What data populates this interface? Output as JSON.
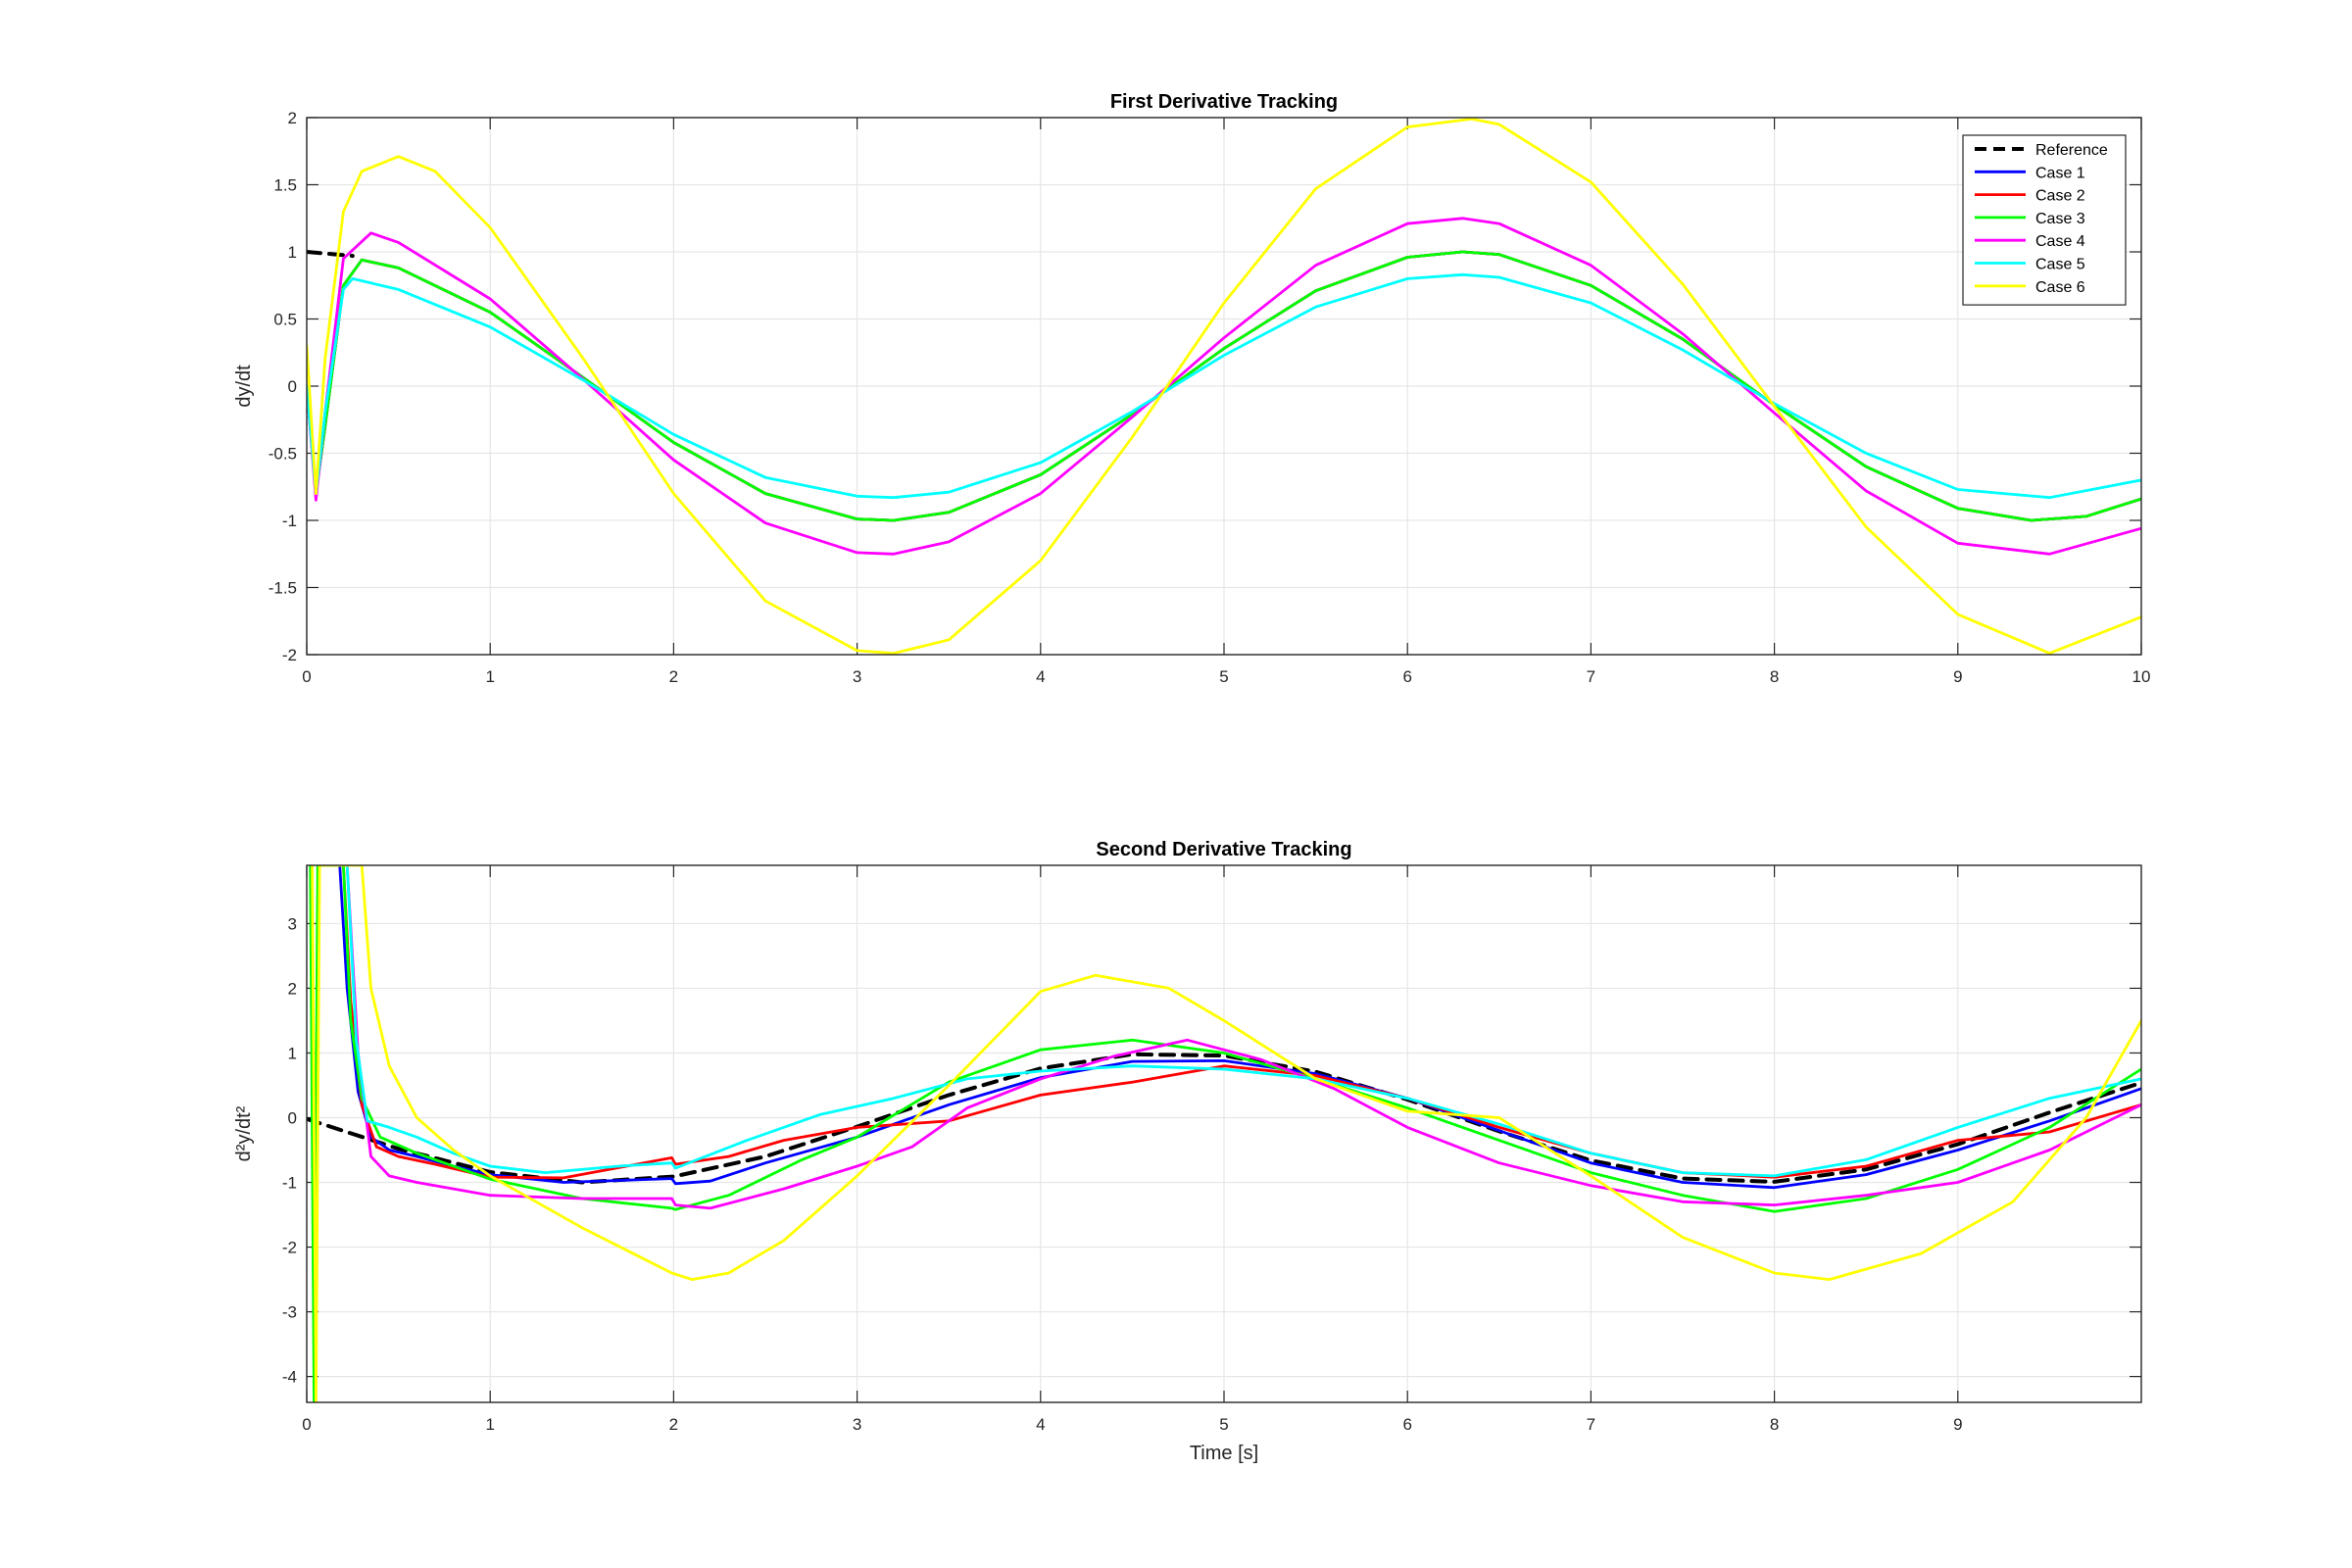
{
  "chart_data": [
    {
      "type": "line",
      "title": "First Derivative Tracking",
      "xlabel": "",
      "ylabel": "dy/dt",
      "xlim": [
        0,
        10
      ],
      "ylim": [
        -2,
        2
      ],
      "xticks": [
        "0",
        "1",
        "2",
        "3",
        "4",
        "5",
        "6",
        "7",
        "8",
        "9",
        "10"
      ],
      "yticks": [
        "-2",
        "-1.5",
        "-1",
        "-0.5",
        "0",
        "0.5",
        "1",
        "1.5",
        "2"
      ],
      "grid": true,
      "legend": {
        "position": "top-right",
        "entries": [
          "Reference",
          "Case 1",
          "Case 2",
          "Case 3",
          "Case 4",
          "Case 5",
          "Case 6"
        ]
      },
      "series": [
        {
          "name": "Reference",
          "color": "#000000",
          "dashed": true,
          "x": [
            0,
            0.25
          ],
          "y": [
            1.0,
            0.97
          ]
        },
        {
          "name": "Case 1",
          "color": "#0000ff",
          "x": [
            0,
            0.05,
            0.1,
            0.2,
            0.3,
            0.5,
            1.0,
            1.5,
            2.0,
            2.5,
            3.0,
            3.2,
            3.5,
            4.0,
            4.5,
            5.0,
            5.5,
            6.0,
            6.3,
            6.5,
            7.0,
            7.5,
            8.0,
            8.5,
            9.0,
            9.4,
            9.7,
            10.0
          ],
          "y": [
            0.0,
            -0.8,
            -0.3,
            0.75,
            0.94,
            0.88,
            0.55,
            0.07,
            -0.42,
            -0.8,
            -0.99,
            -1.0,
            -0.94,
            -0.66,
            -0.21,
            0.28,
            0.71,
            0.96,
            1.0,
            0.98,
            0.75,
            0.35,
            -0.14,
            -0.6,
            -0.91,
            -1.0,
            -0.97,
            -0.84
          ]
        },
        {
          "name": "Case 2",
          "color": "#ff0000",
          "x": [
            0,
            0.05,
            0.1,
            0.2,
            0.3,
            0.5,
            1.0,
            1.5,
            2.0,
            2.5,
            3.0,
            3.2,
            3.5,
            4.0,
            4.5,
            5.0,
            5.5,
            6.0,
            6.3,
            6.5,
            7.0,
            7.5,
            8.0,
            8.5,
            9.0,
            9.4,
            9.7,
            10.0
          ],
          "y": [
            0.0,
            -0.8,
            -0.3,
            0.75,
            0.94,
            0.88,
            0.55,
            0.07,
            -0.42,
            -0.8,
            -0.99,
            -1.0,
            -0.94,
            -0.66,
            -0.21,
            0.28,
            0.71,
            0.96,
            1.0,
            0.98,
            0.75,
            0.35,
            -0.14,
            -0.6,
            -0.91,
            -1.0,
            -0.97,
            -0.84
          ]
        },
        {
          "name": "Case 3",
          "color": "#00ff00",
          "x": [
            0,
            0.05,
            0.1,
            0.2,
            0.3,
            0.5,
            1.0,
            1.5,
            2.0,
            2.5,
            3.0,
            3.2,
            3.5,
            4.0,
            4.5,
            5.0,
            5.5,
            6.0,
            6.3,
            6.5,
            7.0,
            7.5,
            8.0,
            8.5,
            9.0,
            9.4,
            9.7,
            10.0
          ],
          "y": [
            0.0,
            -0.8,
            -0.3,
            0.75,
            0.94,
            0.88,
            0.55,
            0.07,
            -0.42,
            -0.8,
            -0.99,
            -1.0,
            -0.94,
            -0.66,
            -0.21,
            0.28,
            0.71,
            0.96,
            1.0,
            0.98,
            0.75,
            0.35,
            -0.14,
            -0.6,
            -0.91,
            -1.0,
            -0.97,
            -0.84
          ]
        },
        {
          "name": "Case 4",
          "color": "#ff00ff",
          "x": [
            0,
            0.05,
            0.1,
            0.2,
            0.35,
            0.5,
            1.0,
            1.5,
            2.0,
            2.5,
            3.0,
            3.2,
            3.5,
            4.0,
            4.5,
            5.0,
            5.5,
            6.0,
            6.3,
            6.5,
            7.0,
            7.5,
            8.0,
            8.5,
            9.0,
            9.5,
            10.0
          ],
          "y": [
            0.0,
            -0.85,
            -0.2,
            0.95,
            1.14,
            1.07,
            0.65,
            0.06,
            -0.55,
            -1.02,
            -1.24,
            -1.25,
            -1.16,
            -0.8,
            -0.23,
            0.36,
            0.9,
            1.21,
            1.25,
            1.21,
            0.9,
            0.39,
            -0.2,
            -0.78,
            -1.17,
            -1.25,
            -1.06
          ]
        },
        {
          "name": "Case 5",
          "color": "#00ffff",
          "x": [
            0,
            0.05,
            0.1,
            0.2,
            0.25,
            0.5,
            1.0,
            1.5,
            2.0,
            2.5,
            3.0,
            3.2,
            3.5,
            4.0,
            4.5,
            5.0,
            5.5,
            6.0,
            6.3,
            6.5,
            7.0,
            7.5,
            8.0,
            8.5,
            9.0,
            9.5,
            10.0
          ],
          "y": [
            0.0,
            -0.8,
            -0.2,
            0.72,
            0.8,
            0.72,
            0.44,
            0.05,
            -0.36,
            -0.68,
            -0.82,
            -0.83,
            -0.79,
            -0.57,
            -0.19,
            0.23,
            0.59,
            0.8,
            0.83,
            0.81,
            0.62,
            0.27,
            -0.13,
            -0.5,
            -0.77,
            -0.83,
            -0.7
          ]
        },
        {
          "name": "Case 6",
          "color": "#ffff00",
          "x": [
            0,
            0.05,
            0.1,
            0.2,
            0.3,
            0.5,
            0.7,
            1.0,
            1.5,
            2.0,
            2.5,
            3.0,
            3.2,
            3.5,
            4.0,
            4.5,
            5.0,
            5.5,
            6.0,
            6.35,
            6.5,
            7.0,
            7.5,
            8.0,
            8.5,
            9.0,
            9.5,
            10.0
          ],
          "y": [
            0.3,
            -0.8,
            0.2,
            1.3,
            1.6,
            1.71,
            1.6,
            1.18,
            0.22,
            -0.8,
            -1.6,
            -1.97,
            -1.99,
            -1.89,
            -1.3,
            -0.38,
            0.62,
            1.47,
            1.93,
            1.99,
            1.95,
            1.52,
            0.76,
            -0.15,
            -1.05,
            -1.7,
            -1.99,
            -1.72
          ]
        }
      ]
    },
    {
      "type": "line",
      "title": "Second Derivative Tracking",
      "xlabel": "Time [s]",
      "ylabel": "d²y/dt²",
      "xlim": [
        0,
        10
      ],
      "ylim": [
        -4.4,
        3.9
      ],
      "xticks": [
        "0",
        "1",
        "2",
        "3",
        "4",
        "5",
        "6",
        "7",
        "8",
        "9"
      ],
      "yticks": [
        "-4",
        "-3",
        "-2",
        "-1",
        "0",
        "1",
        "2",
        "3"
      ],
      "grid": true,
      "series": [
        {
          "name": "Reference",
          "color": "#000000",
          "dashed": true,
          "x": [
            0,
            0.25,
            0.5,
            1.0,
            1.5,
            2.0,
            2.5,
            3.0,
            3.5,
            4.0,
            4.5,
            5.0,
            5.5,
            6.0,
            6.5,
            7.0,
            7.5,
            8.0,
            8.5,
            9.0,
            9.5,
            10.0
          ],
          "y": [
            -0.02,
            -0.25,
            -0.48,
            -0.84,
            -1.0,
            -0.91,
            -0.6,
            -0.14,
            0.35,
            0.76,
            0.98,
            0.96,
            0.71,
            0.28,
            -0.21,
            -0.66,
            -0.94,
            -0.99,
            -0.8,
            -0.41,
            0.08,
            0.54
          ]
        },
        {
          "name": "Case 1",
          "color": "#0000ff",
          "x": [
            0.18,
            0.22,
            0.28,
            0.35,
            0.45,
            0.6,
            0.8,
            1.0,
            1.4,
            1.8,
            1.99,
            2.01,
            2.2,
            2.5,
            3.0,
            3.5,
            4.0,
            4.5,
            5.0,
            5.5,
            6.0,
            6.5,
            7.0,
            7.5,
            8.0,
            8.5,
            9.0,
            9.5,
            10.0
          ],
          "y": [
            3.9,
            2.0,
            0.4,
            -0.3,
            -0.5,
            -0.6,
            -0.75,
            -0.88,
            -1.0,
            -0.96,
            -0.94,
            -1.02,
            -0.98,
            -0.7,
            -0.3,
            0.2,
            0.62,
            0.87,
            0.88,
            0.68,
            0.3,
            -0.2,
            -0.7,
            -1.0,
            -1.08,
            -0.88,
            -0.5,
            -0.05,
            0.45
          ]
        },
        {
          "name": "Case 2",
          "color": "#ff0000",
          "x": [
            0.2,
            0.24,
            0.3,
            0.38,
            0.5,
            0.7,
            1.0,
            1.4,
            1.8,
            1.99,
            2.01,
            2.3,
            2.6,
            3.0,
            3.5,
            4.0,
            4.5,
            5.0,
            5.5,
            6.0,
            6.5,
            7.0,
            7.5,
            8.0,
            8.5,
            9.0,
            9.5,
            10.0
          ],
          "y": [
            3.9,
            1.8,
            0.2,
            -0.45,
            -0.6,
            -0.72,
            -0.92,
            -0.93,
            -0.72,
            -0.62,
            -0.72,
            -0.6,
            -0.35,
            -0.15,
            -0.05,
            0.35,
            0.55,
            0.8,
            0.65,
            0.3,
            -0.15,
            -0.55,
            -0.85,
            -0.92,
            -0.75,
            -0.35,
            -0.22,
            0.2
          ]
        },
        {
          "name": "Case 3",
          "color": "#00ff00",
          "x": [
            0.02,
            0.04,
            0.06,
            0.2,
            0.24,
            0.3,
            0.4,
            0.6,
            1.0,
            1.5,
            1.99,
            2.01,
            2.3,
            2.7,
            3.0,
            3.5,
            4.0,
            4.5,
            5.0,
            5.5,
            6.0,
            6.5,
            7.0,
            7.5,
            8.0,
            8.5,
            9.0,
            9.5,
            10.0
          ],
          "y": [
            3.9,
            -4.4,
            3.9,
            3.9,
            1.5,
            0.3,
            -0.3,
            -0.55,
            -0.95,
            -1.25,
            -1.4,
            -1.42,
            -1.2,
            -0.65,
            -0.3,
            0.55,
            1.05,
            1.2,
            1.0,
            0.6,
            0.15,
            -0.35,
            -0.85,
            -1.2,
            -1.45,
            -1.25,
            -0.8,
            -0.15,
            0.75
          ]
        },
        {
          "name": "Case 4",
          "color": "#ff00ff",
          "x": [
            0.22,
            0.28,
            0.35,
            0.45,
            0.6,
            0.8,
            1.0,
            1.5,
            1.99,
            2.01,
            2.2,
            2.6,
            3.0,
            3.3,
            3.6,
            4.0,
            4.4,
            4.8,
            5.2,
            5.6,
            6.0,
            6.5,
            7.0,
            7.5,
            8.0,
            8.5,
            9.0,
            9.5,
            10.0
          ],
          "y": [
            3.9,
            1.0,
            -0.6,
            -0.9,
            -1.0,
            -1.1,
            -1.2,
            -1.25,
            -1.25,
            -1.35,
            -1.4,
            -1.1,
            -0.75,
            -0.45,
            0.15,
            0.6,
            0.95,
            1.2,
            0.9,
            0.45,
            -0.15,
            -0.7,
            -1.05,
            -1.3,
            -1.35,
            -1.2,
            -1.0,
            -0.5,
            0.2
          ]
        },
        {
          "name": "Case 5",
          "color": "#00ffff",
          "x": [
            0.22,
            0.27,
            0.33,
            0.45,
            0.6,
            0.8,
            1.0,
            1.3,
            1.7,
            1.99,
            2.01,
            2.4,
            2.8,
            3.2,
            3.6,
            4.0,
            4.5,
            5.0,
            5.5,
            6.0,
            6.5,
            7.0,
            7.5,
            8.0,
            8.5,
            9.0,
            9.5,
            10.0
          ],
          "y": [
            3.9,
            1.2,
            -0.05,
            -0.15,
            -0.3,
            -0.55,
            -0.75,
            -0.85,
            -0.75,
            -0.7,
            -0.78,
            -0.35,
            0.05,
            0.3,
            0.6,
            0.72,
            0.8,
            0.75,
            0.6,
            0.3,
            -0.1,
            -0.55,
            -0.85,
            -0.9,
            -0.65,
            -0.15,
            0.3,
            0.6
          ]
        },
        {
          "name": "Case 6",
          "color": "#ffff00",
          "x": [
            0.03,
            0.05,
            0.07,
            0.3,
            0.35,
            0.45,
            0.6,
            0.8,
            1.0,
            1.5,
            1.99,
            2.1,
            2.3,
            2.6,
            3.0,
            3.5,
            4.0,
            4.3,
            4.7,
            5.0,
            5.5,
            6.0,
            6.5,
            7.0,
            7.5,
            8.0,
            8.3,
            8.8,
            9.3,
            9.7,
            10.0
          ],
          "y": [
            3.9,
            -4.4,
            3.9,
            3.9,
            2.0,
            0.8,
            0.0,
            -0.5,
            -0.9,
            -1.7,
            -2.4,
            -2.5,
            -2.4,
            -1.9,
            -0.9,
            0.5,
            1.95,
            2.2,
            2.0,
            1.5,
            0.6,
            0.1,
            0.0,
            -0.9,
            -1.85,
            -2.4,
            -2.5,
            -2.1,
            -1.3,
            0.0,
            1.5
          ]
        }
      ]
    }
  ]
}
